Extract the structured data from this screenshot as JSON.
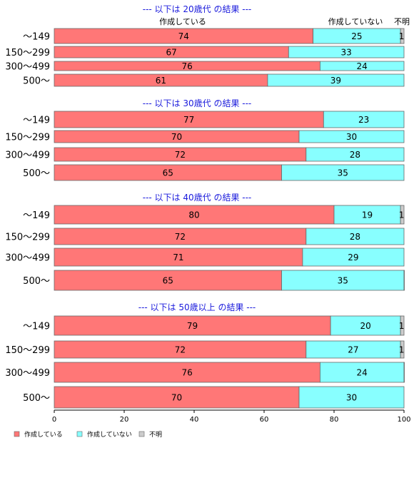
{
  "chart_data": {
    "type": "bar",
    "orientation": "horizontal",
    "stacked": true,
    "column_headers": [
      "作成している",
      "作成していない",
      "不明"
    ],
    "legend": {
      "placement": "bottom-left",
      "entries": [
        {
          "name": "作成している",
          "color": "#ff7777"
        },
        {
          "name": "作成していない",
          "color": "#88ffff"
        },
        {
          "name": "不明",
          "color": "#cccccc"
        }
      ]
    },
    "x_axis": {
      "min": 0,
      "max": 100,
      "ticks": [
        "0",
        "20",
        "40",
        "60",
        "80",
        "100"
      ]
    },
    "groups": [
      {
        "title": "--- 以下は 20歳代 の結果 ---",
        "rows": [
          {
            "category": "～149",
            "values": [
              74,
              25,
              1
            ],
            "labels": [
              "74",
              "25",
              "1"
            ]
          },
          {
            "category": "150～299",
            "values": [
              67,
              33,
              0
            ],
            "labels": [
              "67",
              "33",
              ""
            ]
          },
          {
            "category": "300～499",
            "values": [
              76,
              24,
              0
            ],
            "labels": [
              "76",
              "24",
              ""
            ]
          },
          {
            "category": "500～",
            "values": [
              61,
              39,
              0
            ],
            "labels": [
              "61",
              "39",
              ""
            ]
          }
        ]
      },
      {
        "title": "--- 以下は 30歳代 の結果 ---",
        "rows": [
          {
            "category": "～149",
            "values": [
              77,
              23,
              0
            ],
            "labels": [
              "77",
              "23",
              ""
            ]
          },
          {
            "category": "150～299",
            "values": [
              70,
              30,
              0
            ],
            "labels": [
              "70",
              "30",
              ""
            ]
          },
          {
            "category": "300～499",
            "values": [
              72,
              28,
              0
            ],
            "labels": [
              "72",
              "28",
              ""
            ]
          },
          {
            "category": "500～",
            "values": [
              65,
              35,
              0
            ],
            "labels": [
              "65",
              "35",
              ""
            ]
          }
        ]
      },
      {
        "title": "--- 以下は 40歳代 の結果 ---",
        "rows": [
          {
            "category": "～149",
            "values": [
              80,
              19,
              1
            ],
            "labels": [
              "80",
              "19",
              "1"
            ]
          },
          {
            "category": "150～299",
            "values": [
              72,
              28,
              0
            ],
            "labels": [
              "72",
              "28",
              ""
            ]
          },
          {
            "category": "300～499",
            "values": [
              71,
              29,
              0
            ],
            "labels": [
              "71",
              "29",
              ""
            ]
          },
          {
            "category": "500～",
            "values": [
              65,
              35,
              0.4
            ],
            "labels": [
              "65",
              "35",
              ""
            ]
          }
        ]
      },
      {
        "title": "--- 以下は 50歳以上 の結果 ---",
        "rows": [
          {
            "category": "～149",
            "values": [
              79,
              20,
              1
            ],
            "labels": [
              "79",
              "20",
              "1"
            ]
          },
          {
            "category": "150～299",
            "values": [
              72,
              27,
              1
            ],
            "labels": [
              "72",
              "27",
              "1"
            ]
          },
          {
            "category": "300～499",
            "values": [
              76,
              24,
              0.4
            ],
            "labels": [
              "76",
              "24",
              ""
            ]
          },
          {
            "category": "500～",
            "values": [
              70,
              30,
              0
            ],
            "labels": [
              "70",
              "30",
              ""
            ]
          }
        ]
      }
    ]
  }
}
